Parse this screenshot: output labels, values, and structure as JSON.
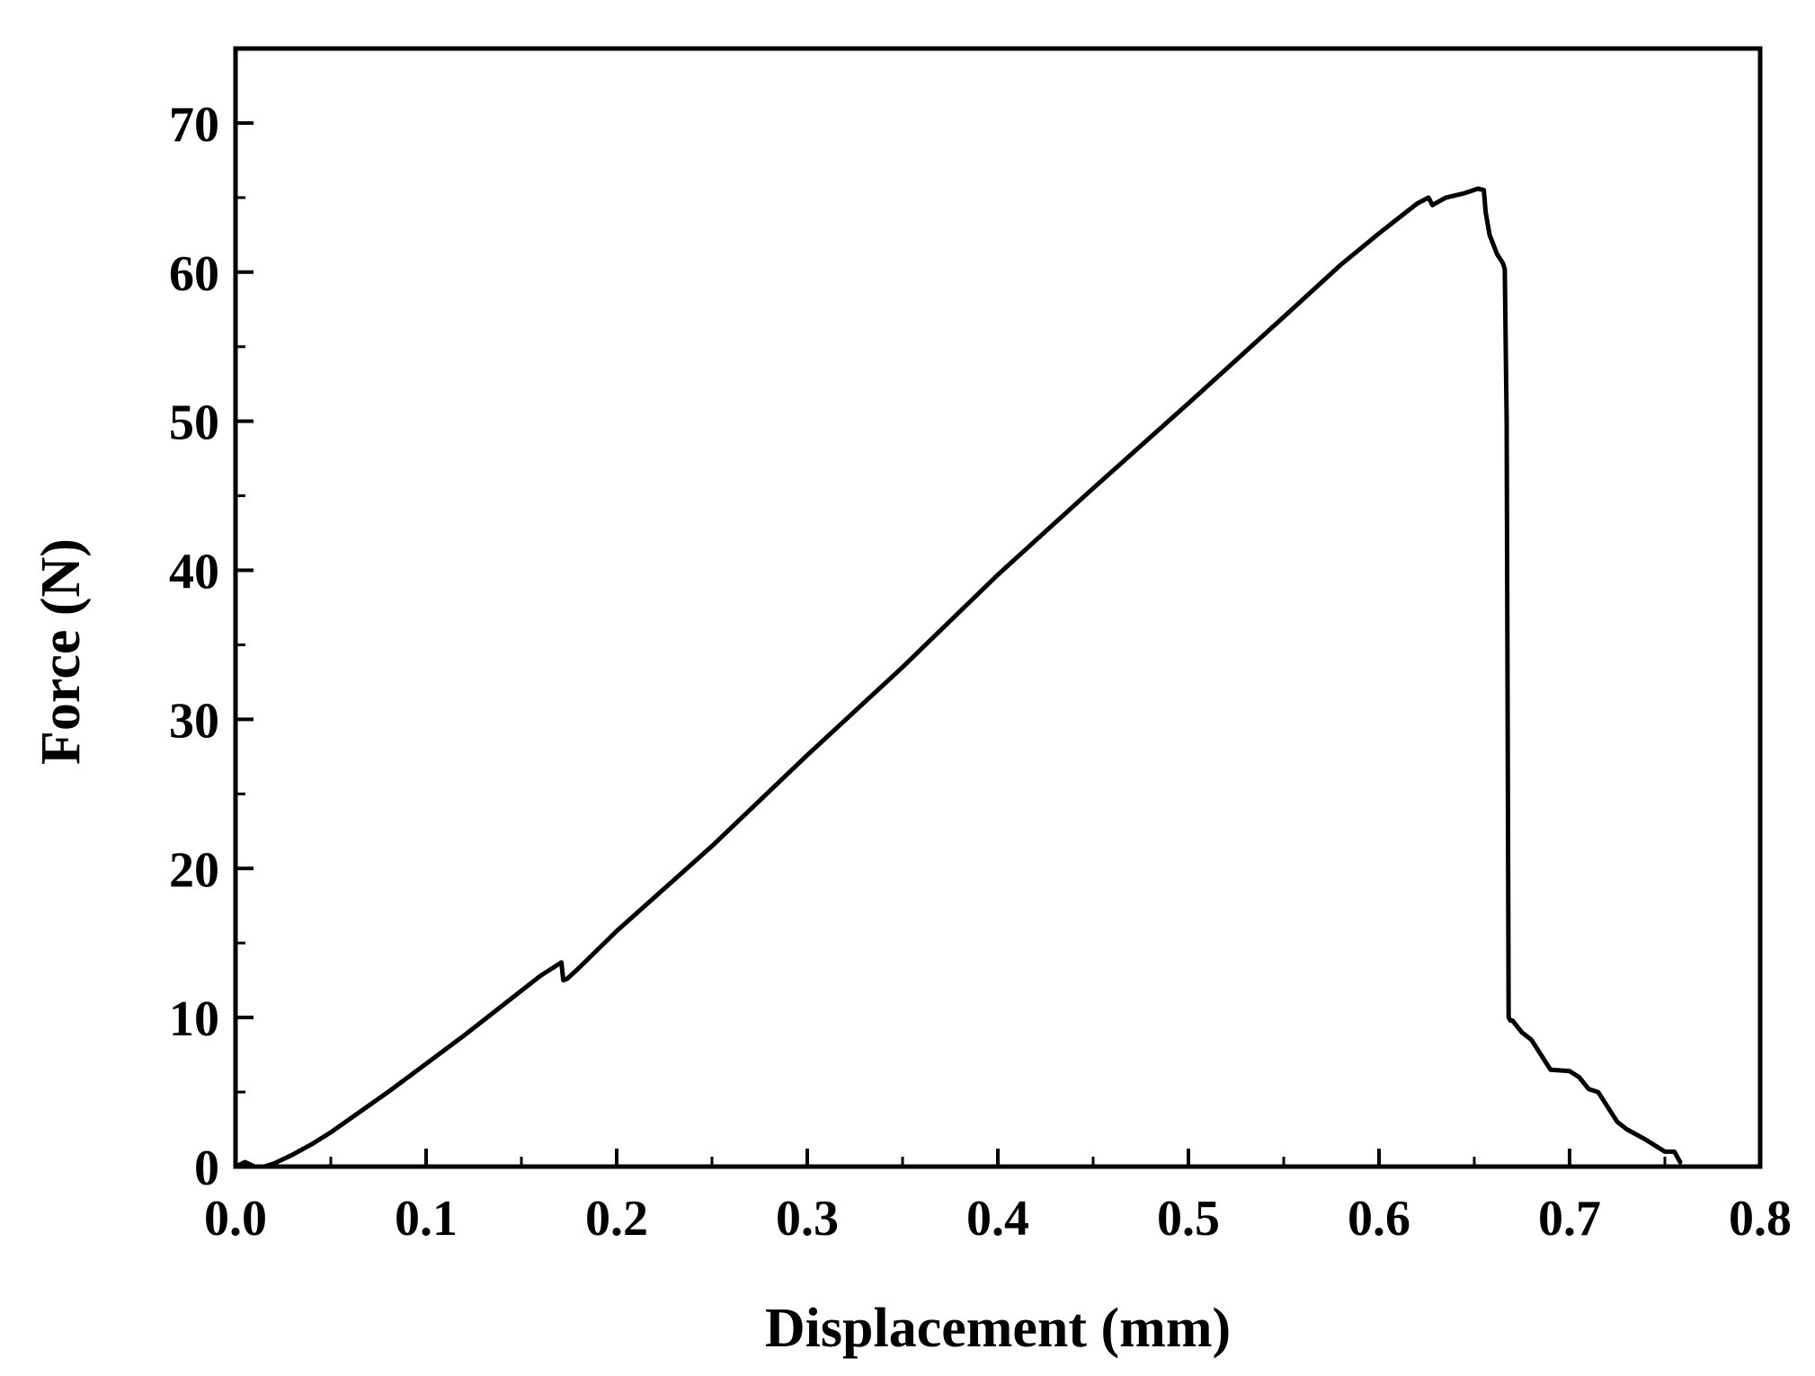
{
  "chart_data": {
    "type": "line",
    "title": "",
    "xlabel": "Displacement (mm)",
    "ylabel": "Force (N)",
    "xlim": [
      0.0,
      0.8
    ],
    "ylim": [
      0,
      75
    ],
    "x_ticks": [
      0.0,
      0.1,
      0.2,
      0.3,
      0.4,
      0.5,
      0.6,
      0.7,
      0.8
    ],
    "x_tick_labels": [
      "0.0",
      "0.1",
      "0.2",
      "0.3",
      "0.4",
      "0.5",
      "0.6",
      "0.7",
      "0.8"
    ],
    "y_ticks": [
      0,
      10,
      20,
      30,
      40,
      50,
      60,
      70
    ],
    "y_tick_labels": [
      "0",
      "10",
      "20",
      "30",
      "40",
      "50",
      "60",
      "70"
    ],
    "x_minor_step": 0.05,
    "y_minor_step": 5,
    "grid": false,
    "legend": "none",
    "line_color": "#000000",
    "series": [
      {
        "x": [
          0.0,
          0.005,
          0.01,
          0.015,
          0.02,
          0.03,
          0.04,
          0.05,
          0.06,
          0.08,
          0.1,
          0.12,
          0.14,
          0.16,
          0.171,
          0.172,
          0.174,
          0.18,
          0.2,
          0.25,
          0.3,
          0.35,
          0.4,
          0.45,
          0.5,
          0.55,
          0.58,
          0.6,
          0.62,
          0.626,
          0.628,
          0.635,
          0.645,
          0.652,
          0.655,
          0.656,
          0.658,
          0.662,
          0.665,
          0.666,
          0.667,
          0.668,
          0.669,
          0.67,
          0.675,
          0.68,
          0.685,
          0.69,
          0.7,
          0.705,
          0.71,
          0.715,
          0.72,
          0.725,
          0.73,
          0.74,
          0.75,
          0.755,
          0.758
        ],
        "y": [
          0.0,
          0.3,
          0.0,
          0.0,
          0.2,
          0.8,
          1.5,
          2.3,
          3.2,
          5.0,
          6.9,
          8.8,
          10.8,
          12.8,
          13.7,
          12.5,
          12.6,
          13.3,
          15.8,
          21.5,
          27.6,
          33.5,
          39.7,
          45.5,
          51.2,
          57.0,
          60.5,
          62.6,
          64.6,
          65.0,
          64.5,
          65.0,
          65.3,
          65.6,
          65.5,
          64.0,
          62.5,
          61.2,
          60.6,
          60.2,
          50.0,
          10.0,
          9.8,
          9.8,
          9.0,
          8.5,
          7.5,
          6.5,
          6.4,
          6.0,
          5.2,
          5.0,
          4.0,
          3.0,
          2.5,
          1.8,
          1.0,
          1.0,
          0.3
        ]
      }
    ]
  }
}
